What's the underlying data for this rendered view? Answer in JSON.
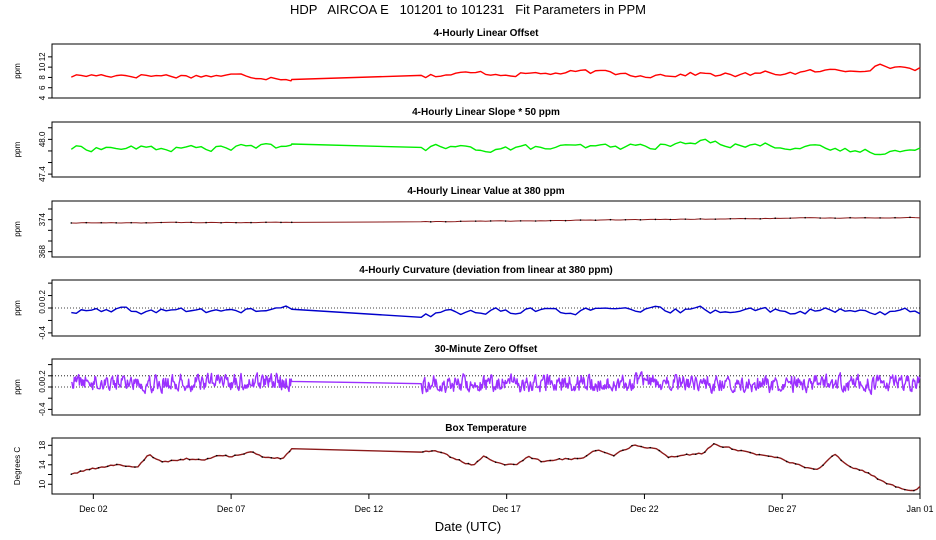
{
  "page_title": "HDP   AIRCOA E   101201 to 101231   Fit Parameters in PPM",
  "xlabel": "Date (UTC)",
  "x_axis": {
    "start_day": 0.5,
    "end_day": 32.0,
    "tick_days": [
      2,
      7,
      12,
      17,
      22,
      27,
      32
    ],
    "tick_labels": [
      "Dec 02",
      "Dec 07",
      "Dec 12",
      "Dec 17",
      "Dec 22",
      "Dec 27",
      "Jan 01"
    ]
  },
  "colors": {
    "offset": "#ff0000",
    "slope": "#00ee00",
    "value": "#8b1a1a",
    "curvature": "#0000cc",
    "zero": "#9b30ff",
    "temperature": "#8b1a1a"
  },
  "chart_data": [
    {
      "type": "line",
      "id": "offset",
      "title": "4-Hourly Linear Offset",
      "ylabel": "ppm",
      "ylim": [
        4,
        14.5
      ],
      "yticks": [
        4,
        6,
        8,
        10,
        12
      ],
      "ytick_labels": [
        "4",
        "6",
        "8",
        "10",
        "12"
      ],
      "gap": [
        9.2,
        13.9
      ],
      "anchors": [
        [
          1.2,
          8.3
        ],
        [
          3,
          8.5
        ],
        [
          5,
          8.3
        ],
        [
          7,
          8.4
        ],
        [
          9.0,
          8.0
        ],
        [
          9.2,
          7.6
        ],
        [
          13.9,
          8.4
        ],
        [
          16,
          8.8
        ],
        [
          18,
          8.7
        ],
        [
          20,
          9.0
        ],
        [
          22,
          8.5
        ],
        [
          24,
          8.7
        ],
        [
          25.5,
          8.4
        ],
        [
          26.5,
          8.8
        ],
        [
          28,
          9.0
        ],
        [
          29.5,
          9.5
        ],
        [
          30.5,
          10.2
        ],
        [
          32,
          9.8
        ]
      ],
      "noise": 0.45,
      "count": 170,
      "ref_lines": []
    },
    {
      "type": "line",
      "id": "slope",
      "title": "4-Hourly Linear Slope * 50 ppm",
      "ylabel": "ppm",
      "ylim": [
        47.35,
        48.3
      ],
      "yticks": [
        47.4,
        47.6,
        47.8,
        48.0,
        48.2
      ],
      "ytick_labels": [
        "47.4",
        "",
        "",
        "48.0",
        ""
      ],
      "gap": [
        9.2,
        13.9
      ],
      "anchors": [
        [
          1.2,
          47.85
        ],
        [
          3,
          47.85
        ],
        [
          5,
          47.84
        ],
        [
          7,
          47.86
        ],
        [
          9.0,
          47.88
        ],
        [
          9.2,
          47.92
        ],
        [
          13.9,
          47.86
        ],
        [
          16,
          47.84
        ],
        [
          18,
          47.85
        ],
        [
          20,
          47.86
        ],
        [
          22,
          47.88
        ],
        [
          23.5,
          47.92
        ],
        [
          24.5,
          47.97
        ],
        [
          25.5,
          47.9
        ],
        [
          27,
          47.9
        ],
        [
          28.5,
          47.82
        ],
        [
          30,
          47.8
        ],
        [
          32,
          47.8
        ]
      ],
      "noise": 0.05,
      "count": 170,
      "ref_lines": []
    },
    {
      "type": "line",
      "id": "value",
      "title": "4-Hourly Linear Value at 380 ppm",
      "ylabel": "ppm",
      "ylim": [
        367,
        377.5
      ],
      "yticks": [
        368,
        370,
        372,
        374,
        376
      ],
      "ytick_labels": [
        "368",
        "",
        "",
        "374",
        ""
      ],
      "gap": [
        9.2,
        13.9
      ],
      "anchors": [
        [
          1.2,
          373.4
        ],
        [
          9.2,
          373.5
        ],
        [
          13.9,
          373.6
        ],
        [
          20,
          373.9
        ],
        [
          24,
          374.1
        ],
        [
          28,
          374.3
        ],
        [
          32,
          374.4
        ]
      ],
      "noise": 0.05,
      "count": 170,
      "ref_lines": []
    },
    {
      "type": "line",
      "id": "curvature",
      "title": "4-Hourly Curvature (deviation from linear at 380 ppm)",
      "ylabel": "ppm",
      "ylim": [
        -0.45,
        0.45
      ],
      "yticks": [
        -0.4,
        -0.2,
        0.0,
        0.2,
        0.4
      ],
      "ytick_labels": [
        "-0.4",
        "",
        "0.0",
        "0.2",
        ""
      ],
      "gap": [
        9.2,
        13.9
      ],
      "anchors": [
        [
          1.2,
          -0.06
        ],
        [
          5,
          -0.05
        ],
        [
          8,
          -0.04
        ],
        [
          9.2,
          -0.02
        ],
        [
          13.9,
          -0.15
        ],
        [
          15,
          -0.06
        ],
        [
          17,
          -0.04
        ],
        [
          20,
          -0.05
        ],
        [
          24,
          -0.04
        ],
        [
          27,
          -0.04
        ],
        [
          30,
          -0.06
        ],
        [
          32,
          -0.06
        ]
      ],
      "noise": 0.05,
      "count": 170,
      "ref_lines": [
        0.0
      ]
    },
    {
      "type": "line",
      "id": "zero",
      "title": "30-Minute Zero Offset",
      "ylabel": "ppm",
      "ylim": [
        -0.5,
        0.5
      ],
      "yticks": [
        -0.4,
        -0.2,
        0.0,
        0.2,
        0.4
      ],
      "ytick_labels": [
        "-0.4",
        "",
        "0.0",
        "0.2",
        ""
      ],
      "gap": [
        9.2,
        13.9
      ],
      "anchors": [
        [
          1.2,
          0.1
        ],
        [
          5,
          0.08
        ],
        [
          9.0,
          0.1
        ],
        [
          9.2,
          0.1
        ],
        [
          13.85,
          0.3
        ],
        [
          13.9,
          0.06
        ],
        [
          20,
          0.06
        ],
        [
          26,
          0.06
        ],
        [
          32,
          0.07
        ]
      ],
      "noise": 0.13,
      "count": 1150,
      "ref_lines": [
        0.0,
        0.2
      ]
    },
    {
      "type": "line",
      "id": "temperature",
      "title": "Box Temperature",
      "ylabel": "Degrees C",
      "ylim": [
        8,
        19.5
      ],
      "yticks": [
        10,
        12,
        14,
        16,
        18
      ],
      "ytick_labels": [
        "10",
        "",
        "14",
        "",
        "18"
      ],
      "gap": [
        9.2,
        13.9
      ],
      "anchors": [
        [
          1.2,
          12.1
        ],
        [
          2,
          13.2
        ],
        [
          2.8,
          14.0
        ],
        [
          3.6,
          13.6
        ],
        [
          4.0,
          16.0
        ],
        [
          4.6,
          14.6
        ],
        [
          5.4,
          15.2
        ],
        [
          6.0,
          15.0
        ],
        [
          6.6,
          15.9
        ],
        [
          7.0,
          15.6
        ],
        [
          7.7,
          16.8
        ],
        [
          8.2,
          15.3
        ],
        [
          8.9,
          15.2
        ],
        [
          9.2,
          17.3
        ],
        [
          13.9,
          16.6
        ],
        [
          14.6,
          16.8
        ],
        [
          15.1,
          15.2
        ],
        [
          15.8,
          13.8
        ],
        [
          16.2,
          15.8
        ],
        [
          16.7,
          14.4
        ],
        [
          17.3,
          13.8
        ],
        [
          17.8,
          15.6
        ],
        [
          18.3,
          14.5
        ],
        [
          19.1,
          15.2
        ],
        [
          19.8,
          15.4
        ],
        [
          20.3,
          17.2
        ],
        [
          20.9,
          16.0
        ],
        [
          21.6,
          18.0
        ],
        [
          22.4,
          17.4
        ],
        [
          22.9,
          15.6
        ],
        [
          23.6,
          16.0
        ],
        [
          24.1,
          16.3
        ],
        [
          24.5,
          18.3
        ],
        [
          25.1,
          17.4
        ],
        [
          25.8,
          16.4
        ],
        [
          26.4,
          15.9
        ],
        [
          27.1,
          15.0
        ],
        [
          27.8,
          13.6
        ],
        [
          28.3,
          12.9
        ],
        [
          28.9,
          16.3
        ],
        [
          29.4,
          13.6
        ],
        [
          30.0,
          12.6
        ],
        [
          30.6,
          10.6
        ],
        [
          31.3,
          9.3
        ],
        [
          31.8,
          8.6
        ],
        [
          32.0,
          9.4
        ]
      ],
      "noise": 0.2,
      "count": 280,
      "ref_lines": []
    }
  ]
}
